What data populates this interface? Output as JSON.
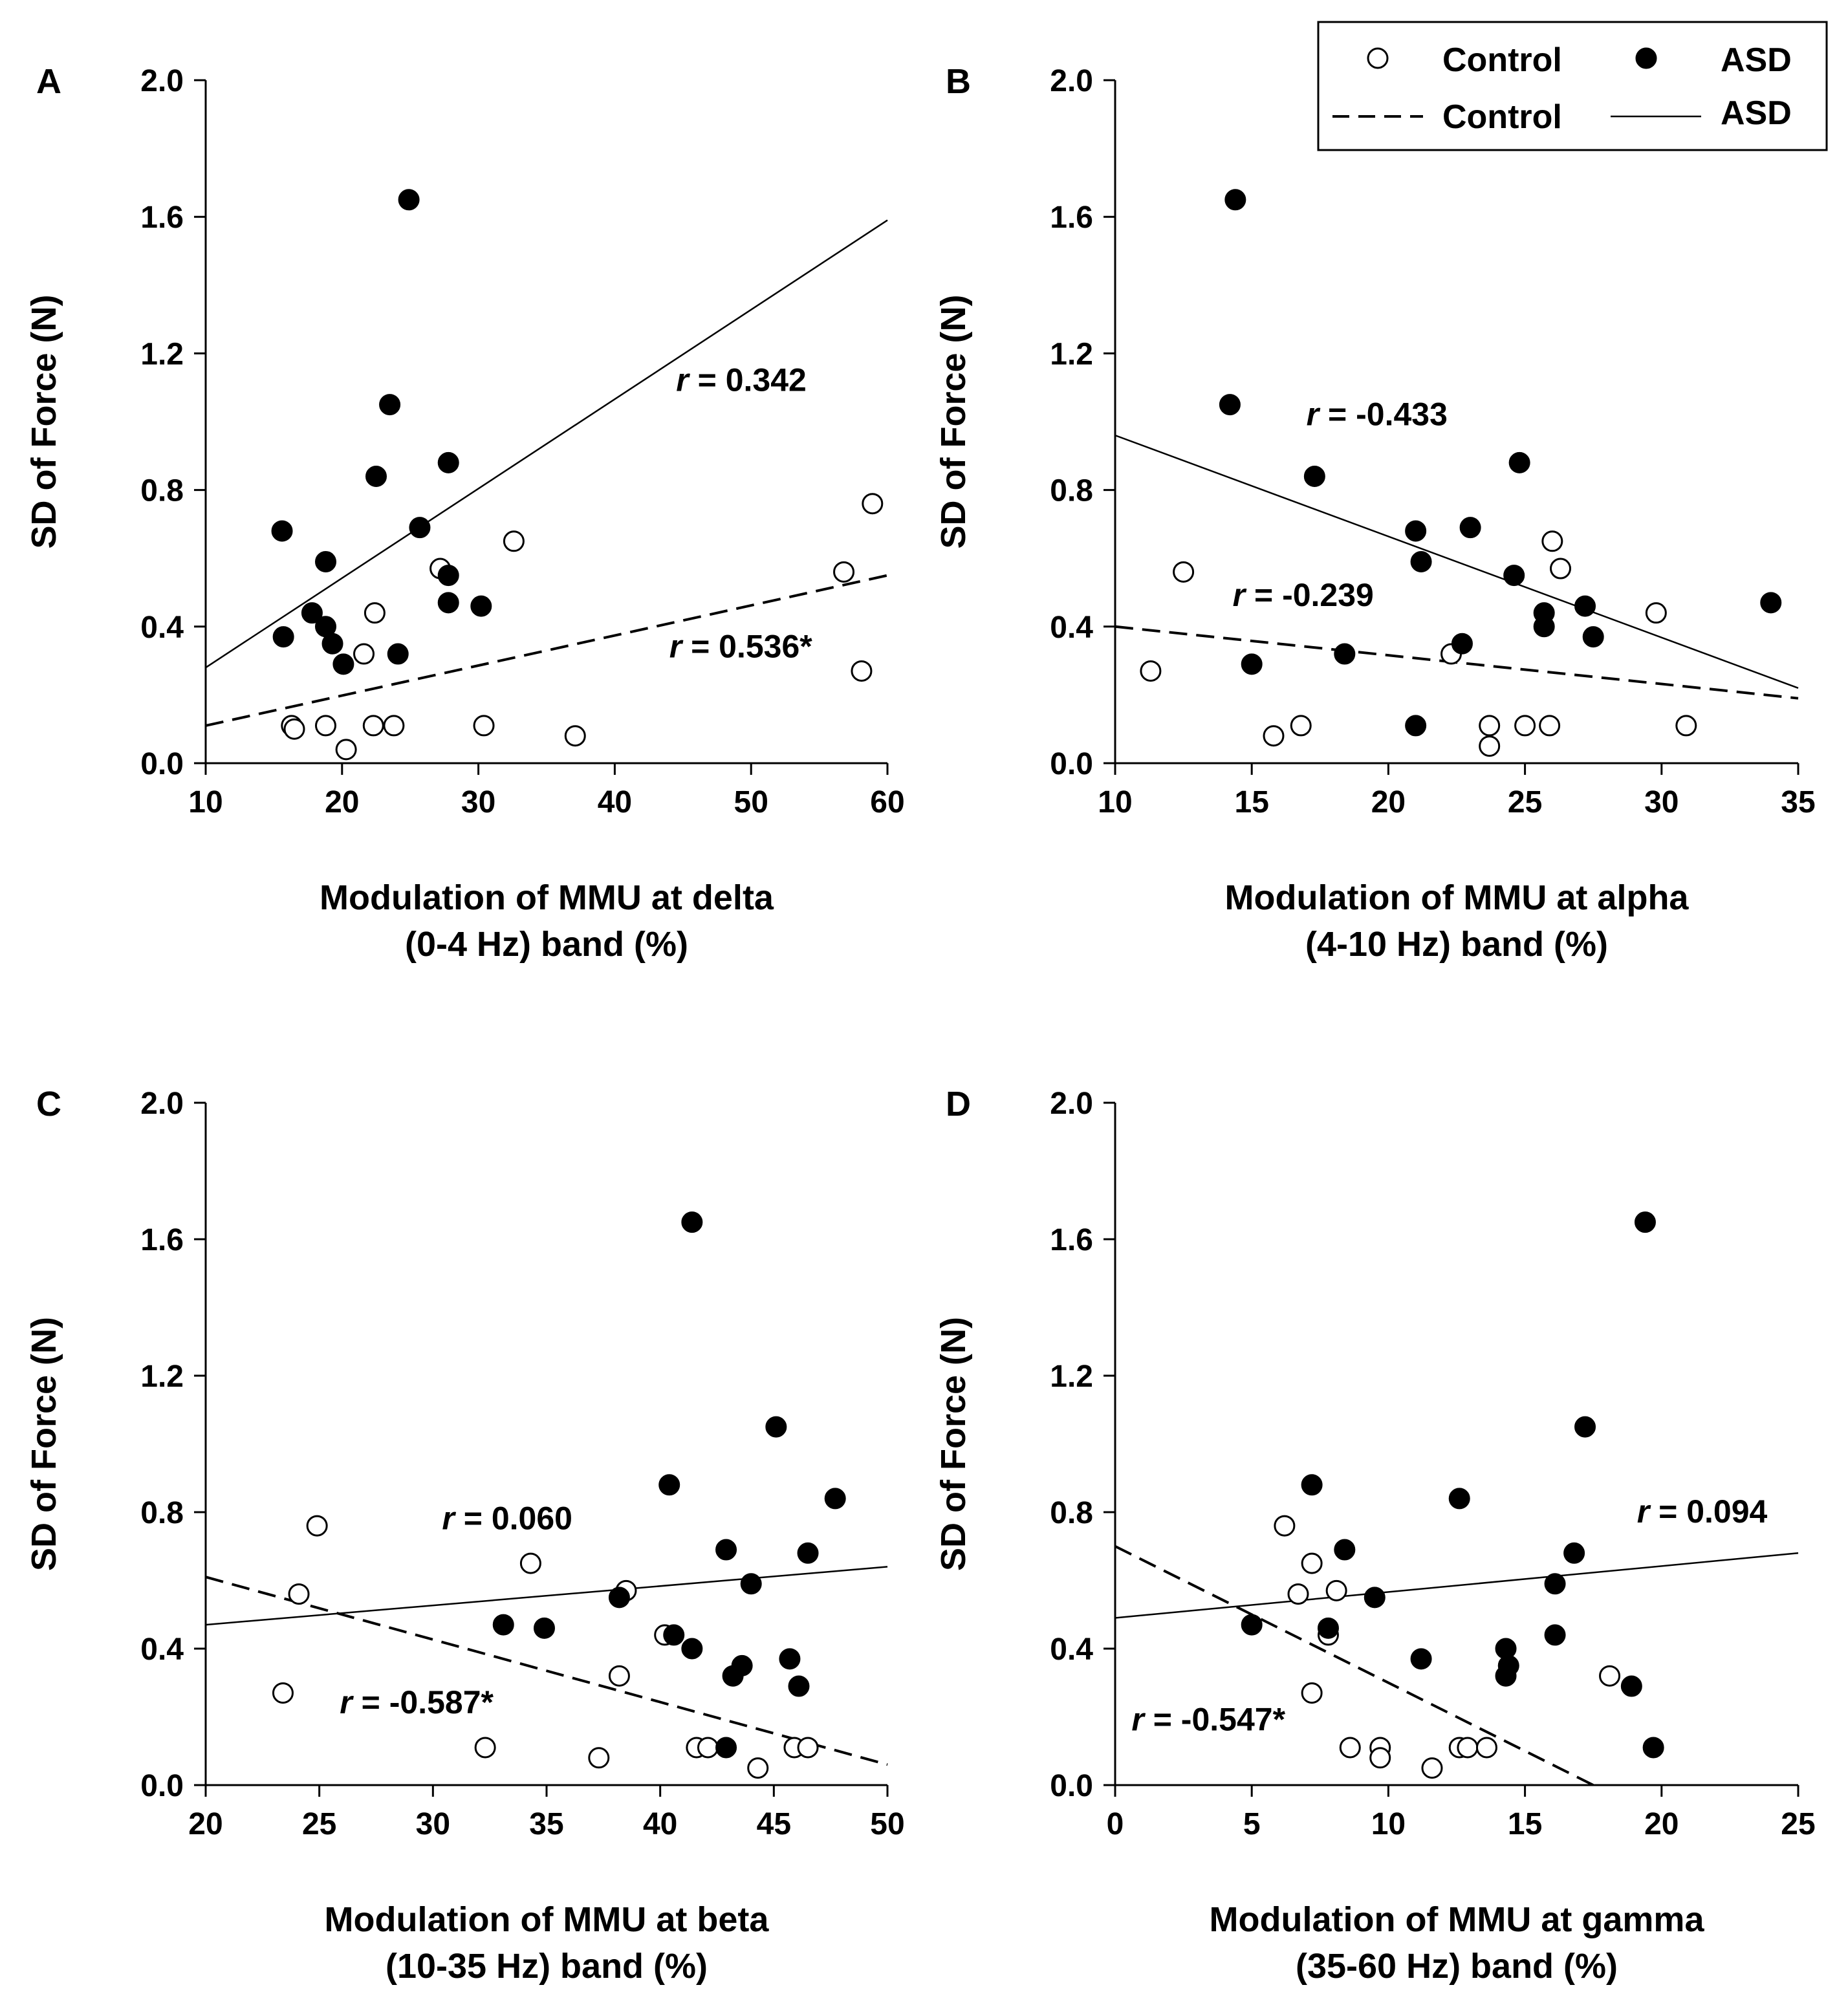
{
  "legend": {
    "control_points": "Control",
    "asd_points": "ASD",
    "control_line": "Control",
    "asd_line": "ASD"
  },
  "colors": {
    "control_fill": "#ffffff",
    "asd_fill": "#000000",
    "stroke": "#000000"
  },
  "chart_data": [
    {
      "panel": "A",
      "type": "scatter",
      "xlabel": [
        "Modulation of MMU at delta",
        "(0-4 Hz) band (%)"
      ],
      "ylabel": "SD of Force (N)",
      "xlim": [
        10,
        60
      ],
      "ylim": [
        0,
        2
      ],
      "xticks": [
        "10",
        "20",
        "30",
        "40",
        "50",
        "60"
      ],
      "yticks": [
        "0.0",
        "0.4",
        "0.8",
        "1.2",
        "1.6",
        "2.0"
      ],
      "series": [
        {
          "name": "Control",
          "points": [
            [
              16.3,
              0.11
            ],
            [
              16.5,
              0.1
            ],
            [
              18.8,
              0.11
            ],
            [
              20.3,
              0.04
            ],
            [
              21.6,
              0.32
            ],
            [
              22.3,
              0.11
            ],
            [
              22.4,
              0.44
            ],
            [
              23.8,
              0.11
            ],
            [
              27.2,
              0.57
            ],
            [
              30.4,
              0.11
            ],
            [
              32.6,
              0.65
            ],
            [
              37.1,
              0.08
            ],
            [
              56.8,
              0.56
            ],
            [
              58.1,
              0.27
            ],
            [
              58.9,
              0.76
            ]
          ],
          "fit": [
            [
              10,
              0.11
            ],
            [
              60,
              0.55
            ]
          ],
          "r_label": "r = 0.536*",
          "r_pos": [
            44,
            0.31
          ]
        },
        {
          "name": "ASD",
          "points": [
            [
              15.6,
              0.68
            ],
            [
              15.7,
              0.37
            ],
            [
              17.8,
              0.44
            ],
            [
              18.8,
              0.59
            ],
            [
              18.8,
              0.4
            ],
            [
              19.3,
              0.35
            ],
            [
              20.1,
              0.29
            ],
            [
              22.5,
              0.84
            ],
            [
              23.5,
              1.05
            ],
            [
              24.1,
              0.32
            ],
            [
              24.9,
              1.65
            ],
            [
              25.7,
              0.69
            ],
            [
              27.8,
              0.88
            ],
            [
              27.8,
              0.55
            ],
            [
              27.8,
              0.47
            ],
            [
              30.2,
              0.46
            ]
          ],
          "fit": [
            [
              10,
              0.28
            ],
            [
              60,
              1.59
            ]
          ],
          "r_label": "r = 0.342",
          "r_pos": [
            44.5,
            1.09
          ]
        }
      ]
    },
    {
      "panel": "B",
      "type": "scatter",
      "xlabel": [
        "Modulation of MMU at alpha",
        "(4-10 Hz) band (%)"
      ],
      "ylabel": "SD of Force (N)",
      "xlim": [
        10,
        35
      ],
      "ylim": [
        0,
        2
      ],
      "xticks": [
        "10",
        "15",
        "20",
        "25",
        "30",
        "35"
      ],
      "yticks": [
        "0.0",
        "0.4",
        "0.8",
        "1.2",
        "1.6",
        "2.0"
      ],
      "series": [
        {
          "name": "Control",
          "points": [
            [
              11.3,
              0.27
            ],
            [
              12.5,
              0.56
            ],
            [
              15.8,
              0.08
            ],
            [
              16.8,
              0.11
            ],
            [
              22.3,
              0.32
            ],
            [
              23.7,
              0.11
            ],
            [
              23.7,
              0.05
            ],
            [
              25.0,
              0.11
            ],
            [
              25.9,
              0.11
            ],
            [
              26.0,
              0.65
            ],
            [
              26.3,
              0.57
            ],
            [
              29.8,
              0.44
            ],
            [
              30.9,
              0.11
            ]
          ],
          "fit": [
            [
              10,
              0.4
            ],
            [
              35,
              0.19
            ]
          ],
          "r_label": "r = -0.239",
          "r_pos": [
            14.3,
            0.46
          ]
        },
        {
          "name": "ASD",
          "points": [
            [
              14.2,
              1.05
            ],
            [
              14.4,
              1.65
            ],
            [
              15.0,
              0.29
            ],
            [
              17.3,
              0.84
            ],
            [
              18.4,
              0.32
            ],
            [
              21.0,
              0.68
            ],
            [
              21.0,
              0.11
            ],
            [
              21.2,
              0.59
            ],
            [
              22.7,
              0.35
            ],
            [
              23.0,
              0.69
            ],
            [
              24.6,
              0.55
            ],
            [
              24.8,
              0.88
            ],
            [
              25.7,
              0.4
            ],
            [
              25.7,
              0.44
            ],
            [
              27.2,
              0.46
            ],
            [
              27.5,
              0.37
            ],
            [
              34.0,
              0.47
            ]
          ],
          "fit": [
            [
              10,
              0.96
            ],
            [
              35,
              0.22
            ]
          ],
          "r_label": "r = -0.433",
          "r_pos": [
            17.0,
            0.99
          ]
        }
      ]
    },
    {
      "panel": "C",
      "type": "scatter",
      "xlabel": [
        "Modulation of MMU at beta",
        "(10-35 Hz) band (%)"
      ],
      "ylabel": "SD of Force (N)",
      "xlim": [
        20,
        50
      ],
      "ylim": [
        0,
        2
      ],
      "xticks": [
        "20",
        "25",
        "30",
        "35",
        "40",
        "45",
        "50"
      ],
      "yticks": [
        "0.0",
        "0.4",
        "0.8",
        "1.2",
        "1.6",
        "2.0"
      ],
      "series": [
        {
          "name": "Control",
          "points": [
            [
              23.4,
              0.27
            ],
            [
              24.1,
              0.56
            ],
            [
              24.9,
              0.76
            ],
            [
              32.3,
              0.11
            ],
            [
              34.3,
              0.65
            ],
            [
              37.3,
              0.08
            ],
            [
              38.2,
              0.32
            ],
            [
              38.5,
              0.57
            ],
            [
              40.2,
              0.44
            ],
            [
              41.6,
              0.11
            ],
            [
              42.1,
              0.11
            ],
            [
              44.3,
              0.05
            ],
            [
              45.9,
              0.11
            ],
            [
              46.5,
              0.11
            ]
          ],
          "fit": [
            [
              20,
              0.61
            ],
            [
              50,
              0.06
            ]
          ],
          "r_label": "r = -0.587*",
          "r_pos": [
            25.9,
            0.21
          ]
        },
        {
          "name": "ASD",
          "points": [
            [
              33.1,
              0.47
            ],
            [
              34.9,
              0.46
            ],
            [
              38.2,
              0.55
            ],
            [
              40.4,
              0.88
            ],
            [
              40.6,
              0.44
            ],
            [
              41.4,
              1.65
            ],
            [
              41.4,
              0.4
            ],
            [
              42.9,
              0.69
            ],
            [
              42.9,
              0.11
            ],
            [
              43.2,
              0.32
            ],
            [
              43.6,
              0.35
            ],
            [
              44.0,
              0.59
            ],
            [
              45.1,
              1.05
            ],
            [
              45.7,
              0.37
            ],
            [
              46.1,
              0.29
            ],
            [
              46.5,
              0.68
            ],
            [
              47.7,
              0.84
            ]
          ],
          "fit": [
            [
              20,
              0.47
            ],
            [
              50,
              0.64
            ]
          ],
          "r_label": "r = 0.060",
          "r_pos": [
            30.4,
            0.75
          ]
        }
      ]
    },
    {
      "panel": "D",
      "type": "scatter",
      "xlabel": [
        "Modulation of MMU at gamma",
        "(35-60 Hz) band (%)"
      ],
      "ylabel": "SD of Force (N)",
      "xlim": [
        0,
        25
      ],
      "ylim": [
        0,
        2
      ],
      "xticks": [
        "0",
        "5",
        "10",
        "15",
        "20",
        "25"
      ],
      "yticks": [
        "0.0",
        "0.4",
        "0.8",
        "1.2",
        "1.6",
        "2.0"
      ],
      "series": [
        {
          "name": "Control",
          "points": [
            [
              6.2,
              0.76
            ],
            [
              6.7,
              0.56
            ],
            [
              7.2,
              0.65
            ],
            [
              7.2,
              0.27
            ],
            [
              7.8,
              0.44
            ],
            [
              8.1,
              0.57
            ],
            [
              8.6,
              0.11
            ],
            [
              9.7,
              0.11
            ],
            [
              9.7,
              0.08
            ],
            [
              11.6,
              0.05
            ],
            [
              12.6,
              0.11
            ],
            [
              12.9,
              0.11
            ],
            [
              13.6,
              0.11
            ],
            [
              18.1,
              0.32
            ]
          ],
          "fit": [
            [
              0,
              0.7
            ],
            [
              17.5,
              0.0
            ]
          ],
          "r_label": "r = -0.547*",
          "r_pos": [
            0.6,
            0.16
          ]
        },
        {
          "name": "ASD",
          "points": [
            [
              5.0,
              0.47
            ],
            [
              7.2,
              0.88
            ],
            [
              7.8,
              0.46
            ],
            [
              8.4,
              0.69
            ],
            [
              9.5,
              0.55
            ],
            [
              11.2,
              0.37
            ],
            [
              12.6,
              0.84
            ],
            [
              14.3,
              0.4
            ],
            [
              14.3,
              0.32
            ],
            [
              14.4,
              0.35
            ],
            [
              16.1,
              0.59
            ],
            [
              16.1,
              0.44
            ],
            [
              16.8,
              0.68
            ],
            [
              17.2,
              1.05
            ],
            [
              18.9,
              0.29
            ],
            [
              19.4,
              1.65
            ],
            [
              19.7,
              0.11
            ]
          ],
          "fit": [
            [
              0,
              0.49
            ],
            [
              25,
              0.68
            ]
          ],
          "r_label": "r = 0.094",
          "r_pos": [
            19.1,
            0.77
          ]
        }
      ]
    }
  ]
}
